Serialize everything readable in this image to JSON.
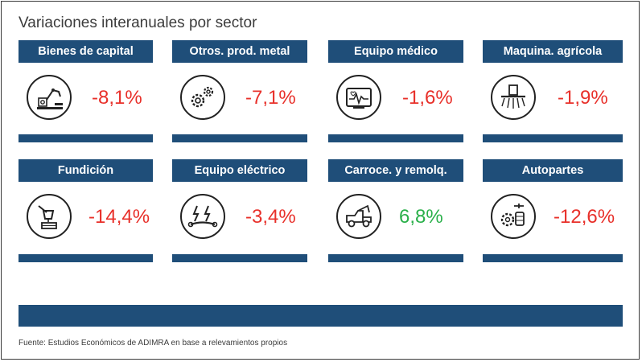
{
  "title": "Variaciones interanuales por sector",
  "source": "Fuente: Estudios Económicos de ADIMRA en base a relevamientos propios",
  "colors": {
    "primary": "#1f4e79",
    "negative": "#e8302a",
    "positive": "#2ab04a",
    "text": "#3c3c3c"
  },
  "chart_data": {
    "type": "table",
    "title": "Variaciones interanuales por sector",
    "unit": "%",
    "categories": [
      "Bienes de capital",
      "Otros. prod. metal",
      "Equipo médico",
      "Maquina. agrícola",
      "Fundición",
      "Equipo eléctrico",
      "Carroce. y remolq.",
      "Autopartes"
    ],
    "values": [
      -8.1,
      -7.1,
      -1.6,
      -1.9,
      -14.4,
      -3.4,
      6.8,
      -12.6
    ]
  },
  "sectors": [
    {
      "label": "Bienes de capital",
      "value_text": "-8,1%",
      "icon": "robot-arm-icon"
    },
    {
      "label": "Otros. prod. metal",
      "value_text": "-7,1%",
      "icon": "gears-icon"
    },
    {
      "label": "Equipo médico",
      "value_text": "-1,6%",
      "icon": "heart-monitor-icon"
    },
    {
      "label": "Maquina. agrícola",
      "value_text": "-1,9%",
      "icon": "sprayer-icon"
    },
    {
      "label": "Fundición",
      "value_text": "-14,4%",
      "icon": "foundry-ladle-icon"
    },
    {
      "label": "Equipo eléctrico",
      "value_text": "-3,4%",
      "icon": "electric-wrench-icon"
    },
    {
      "label": "Carroce. y remolq.",
      "value_text": "6,8%",
      "icon": "tow-truck-icon"
    },
    {
      "label": "Autopartes",
      "value_text": "-12,6%",
      "icon": "auto-parts-icon"
    }
  ]
}
